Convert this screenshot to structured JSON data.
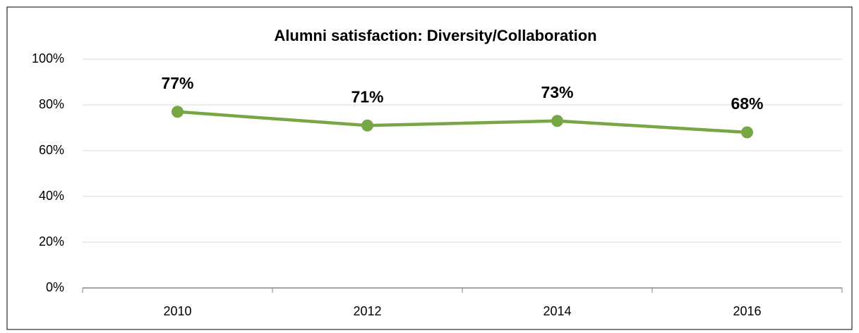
{
  "chart_data": {
    "type": "line",
    "title": "Alumni satisfaction: Diversity/Collaboration",
    "categories": [
      "2010",
      "2012",
      "2014",
      "2016"
    ],
    "series": [
      {
        "name": "Alumni satisfaction",
        "color": "#77a744",
        "values": [
          77,
          71,
          73,
          68
        ],
        "value_labels": [
          "77%",
          "71%",
          "73%",
          "68%"
        ]
      }
    ],
    "ylim": [
      0,
      100
    ],
    "yticks": [
      {
        "value": 0,
        "label": "0%"
      },
      {
        "value": 20,
        "label": "20%"
      },
      {
        "value": 40,
        "label": "40%"
      },
      {
        "value": 60,
        "label": "60%"
      },
      {
        "value": 80,
        "label": "80%"
      },
      {
        "value": 100,
        "label": "100%"
      }
    ],
    "grid": true
  }
}
